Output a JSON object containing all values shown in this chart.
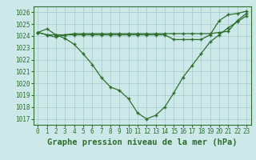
{
  "xlabel": "Graphe pression niveau de la mer (hPa)",
  "ylabel": "",
  "bg_color": "#cce8e8",
  "grid_color": "#aacece",
  "line_color": "#2d6e2d",
  "hours": [
    0,
    1,
    2,
    3,
    4,
    5,
    6,
    7,
    8,
    9,
    10,
    11,
    12,
    13,
    14,
    15,
    16,
    17,
    18,
    19,
    20,
    21,
    22,
    23
  ],
  "line1": [
    1024.3,
    1024.6,
    1024.1,
    1023.8,
    1023.3,
    1022.5,
    1021.6,
    1020.5,
    1019.7,
    1019.4,
    1018.7,
    1017.5,
    1017.0,
    1017.3,
    1018.0,
    1019.2,
    1020.5,
    1021.5,
    1022.5,
    1023.5,
    1024.1,
    1024.7,
    1025.2,
    1025.7
  ],
  "line2": [
    1024.3,
    1024.1,
    1024.1,
    1024.1,
    1024.2,
    1024.2,
    1024.2,
    1024.2,
    1024.2,
    1024.2,
    1024.2,
    1024.2,
    1024.2,
    1024.2,
    1024.2,
    1024.2,
    1024.2,
    1024.2,
    1024.2,
    1024.2,
    1024.3,
    1024.4,
    1025.3,
    1025.9
  ],
  "line3": [
    1024.3,
    1024.1,
    1023.9,
    1024.1,
    1024.1,
    1024.1,
    1024.1,
    1024.1,
    1024.1,
    1024.1,
    1024.1,
    1024.1,
    1024.1,
    1024.1,
    1024.1,
    1023.7,
    1023.7,
    1023.7,
    1023.7,
    1024.1,
    1025.3,
    1025.8,
    1025.9,
    1026.1
  ],
  "ylim": [
    1016.5,
    1026.5
  ],
  "yticks": [
    1017,
    1018,
    1019,
    1020,
    1021,
    1022,
    1023,
    1024,
    1025,
    1026
  ],
  "xticks": [
    0,
    1,
    2,
    3,
    4,
    5,
    6,
    7,
    8,
    9,
    10,
    11,
    12,
    13,
    14,
    15,
    16,
    17,
    18,
    19,
    20,
    21,
    22,
    23
  ],
  "xlabel_fontsize": 7.5,
  "tick_fontsize": 5.5,
  "marker": "+"
}
